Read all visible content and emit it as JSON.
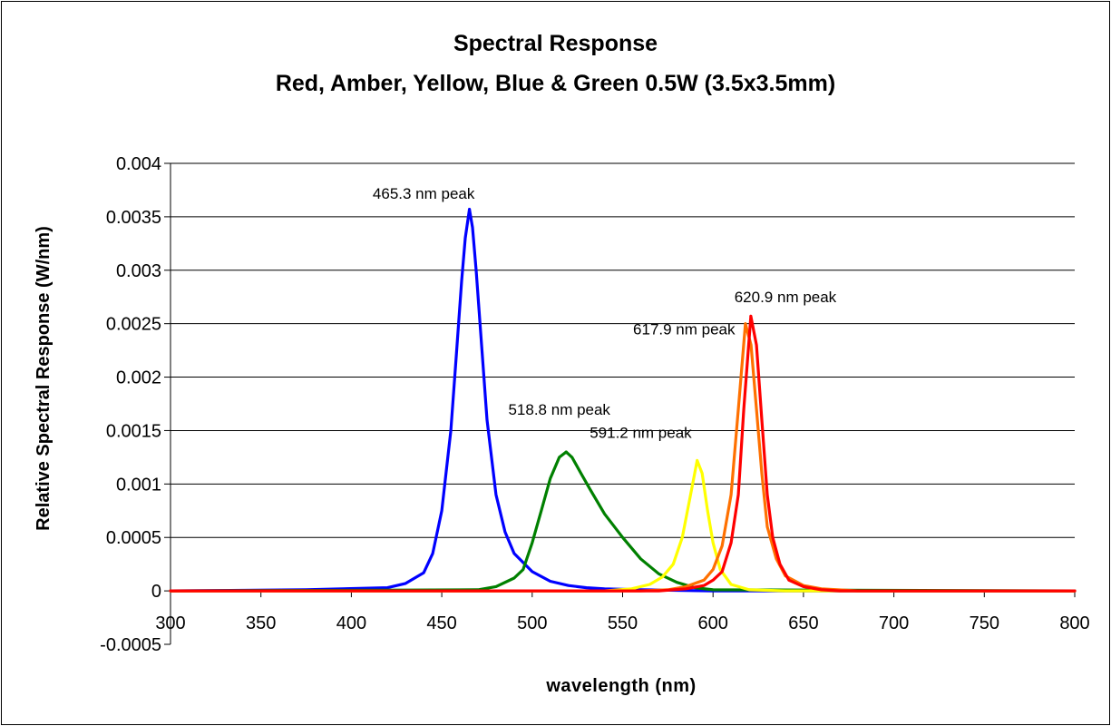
{
  "chart_data": {
    "type": "line",
    "title": "Spectral Response",
    "subtitle": "Red, Amber, Yellow, Blue & Green  0.5W (3.5x3.5mm)",
    "xlabel": "wavelength (nm)",
    "ylabel": "Relative Spectral Response (W/nm)",
    "xlim": [
      300,
      800
    ],
    "ylim": [
      -0.0005,
      0.004
    ],
    "x_ticks": [
      300,
      350,
      400,
      450,
      500,
      550,
      600,
      650,
      700,
      750,
      800
    ],
    "x_tick_labels": [
      "300",
      "350",
      "400",
      "450",
      "500",
      "550",
      "600",
      "650",
      "700",
      "750",
      "800"
    ],
    "y_ticks": [
      -0.0005,
      0,
      0.0005,
      0.001,
      0.0015,
      0.002,
      0.0025,
      0.003,
      0.0035,
      0.004
    ],
    "y_tick_labels": [
      "-0.0005",
      "0",
      "0.0005",
      "0.001",
      "0.0015",
      "0.002",
      "0.0025",
      "0.003",
      "0.0035",
      "0.004"
    ],
    "grid": "horizontal",
    "legend": "none",
    "series": [
      {
        "color": "#0000ff",
        "peak_nm": 465.3,
        "peak_value": 0.00357,
        "x": [
          300,
          375,
          420,
          430,
          440,
          445,
          450,
          455,
          458,
          461,
          463,
          465.3,
          467,
          469,
          472,
          475,
          480,
          485,
          490,
          500,
          510,
          520,
          530,
          540,
          560,
          600,
          800
        ],
        "y": [
          0,
          1e-05,
          3e-05,
          7e-05,
          0.00017,
          0.00035,
          0.00075,
          0.0015,
          0.0022,
          0.0029,
          0.0033,
          0.00357,
          0.0034,
          0.003,
          0.0023,
          0.0016,
          0.0009,
          0.00055,
          0.00035,
          0.00018,
          9e-05,
          5e-05,
          3e-05,
          2e-05,
          1e-05,
          0,
          0
        ]
      },
      {
        "color": "#008000",
        "peak_nm": 518.8,
        "peak_value": 0.0013,
        "x": [
          300,
          470,
          480,
          490,
          495,
          500,
          505,
          510,
          515,
          518.8,
          522,
          527,
          532,
          540,
          550,
          560,
          570,
          580,
          590,
          600,
          800
        ],
        "y": [
          0,
          1e-05,
          4e-05,
          0.00012,
          0.0002,
          0.00045,
          0.00075,
          0.00105,
          0.00125,
          0.0013,
          0.00125,
          0.0011,
          0.00095,
          0.00072,
          0.0005,
          0.0003,
          0.00016,
          8e-05,
          3e-05,
          1e-05,
          0
        ]
      },
      {
        "color": "#ffff00",
        "peak_nm": 591.2,
        "peak_value": 0.00122,
        "x": [
          300,
          540,
          555,
          565,
          572,
          578,
          583,
          587,
          591.2,
          594,
          597,
          600,
          604,
          610,
          620,
          640,
          800
        ],
        "y": [
          0,
          0,
          2e-05,
          6e-05,
          0.00013,
          0.00025,
          0.0005,
          0.00085,
          0.00122,
          0.0011,
          0.00075,
          0.00045,
          0.0002,
          6e-05,
          1e-05,
          0,
          0
        ]
      },
      {
        "color": "#ff7000",
        "peak_nm": 617.9,
        "peak_value": 0.0025,
        "x": [
          300,
          560,
          575,
          585,
          595,
          600,
          605,
          610,
          614,
          617.9,
          621,
          624,
          627,
          630,
          635,
          640,
          650,
          660,
          680,
          700,
          800
        ],
        "y": [
          0,
          0,
          1e-05,
          4e-05,
          0.0001,
          0.0002,
          0.00042,
          0.0009,
          0.0017,
          0.0025,
          0.0023,
          0.0017,
          0.0011,
          0.0006,
          0.0003,
          0.00014,
          5e-05,
          2e-05,
          0,
          0,
          0
        ]
      },
      {
        "color": "#ff0000",
        "peak_nm": 620.9,
        "peak_value": 0.00257,
        "x": [
          300,
          570,
          585,
          595,
          600,
          605,
          610,
          614,
          617,
          620.9,
          624,
          627,
          630,
          633,
          637,
          642,
          650,
          660,
          670,
          690,
          800
        ],
        "y": [
          0,
          0,
          2e-05,
          5e-05,
          0.0001,
          0.00018,
          0.00045,
          0.0009,
          0.0017,
          0.00257,
          0.0023,
          0.0016,
          0.0009,
          0.0005,
          0.00025,
          0.0001,
          4e-05,
          1e-05,
          0,
          0,
          0
        ]
      }
    ],
    "annotations": [
      {
        "text": "465.3 nm peak",
        "x": 440,
        "y": 0.00367
      },
      {
        "text": "518.8 nm peak",
        "x": 515,
        "y": 0.00165
      },
      {
        "text": "591.2 nm peak",
        "x": 560,
        "y": 0.00143
      },
      {
        "text": "617.9 nm peak",
        "x": 584,
        "y": 0.0024
      },
      {
        "text": "620.9 nm peak",
        "x": 640,
        "y": 0.0027
      }
    ]
  }
}
